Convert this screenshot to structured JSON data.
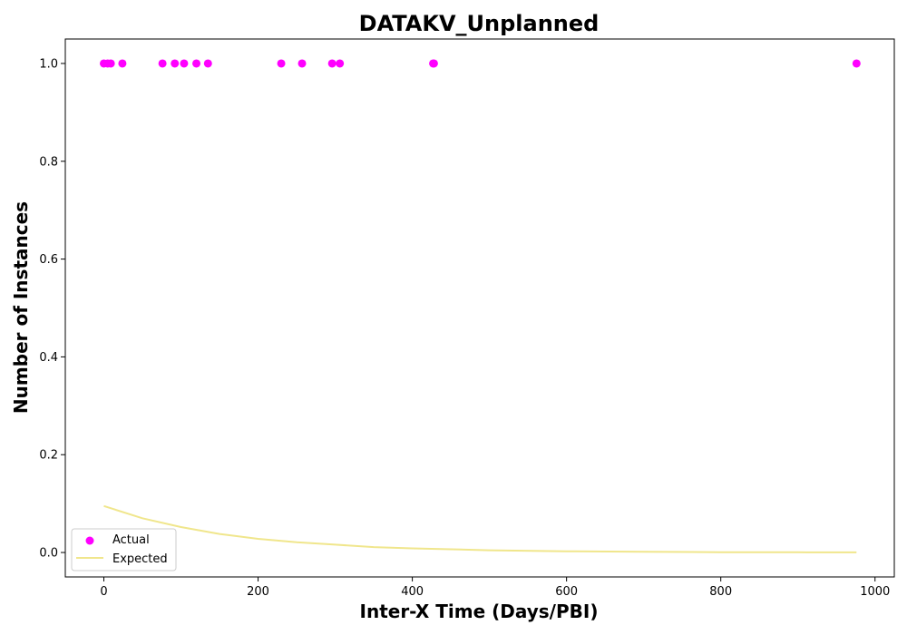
{
  "chart_data": {
    "type": "scatter",
    "title": "DATAKV_Unplanned",
    "xlabel": "Inter-X Time (Days/PBI)",
    "ylabel": "Number of Instances",
    "xlim": [
      -50,
      1025
    ],
    "ylim": [
      -0.05,
      1.05
    ],
    "xticks": [
      0,
      200,
      400,
      600,
      800,
      1000
    ],
    "xtick_labels": [
      "0",
      "200",
      "400",
      "600",
      "800",
      "1000"
    ],
    "yticks": [
      0.0,
      0.2,
      0.4,
      0.6,
      0.8,
      1.0
    ],
    "ytick_labels": [
      "0.0",
      "0.2",
      "0.4",
      "0.6",
      "0.8",
      "1.0"
    ],
    "grid": false,
    "legend_position": "lower-left",
    "series": [
      {
        "name": "Actual",
        "kind": "scatter",
        "color": "#ff00ff",
        "x": [
          0,
          5,
          9,
          24,
          76,
          92,
          104,
          120,
          135,
          230,
          257,
          296,
          306,
          427,
          428,
          976
        ],
        "y": [
          1,
          1,
          1,
          1,
          1,
          1,
          1,
          1,
          1,
          1,
          1,
          1,
          1,
          1,
          1,
          1
        ]
      },
      {
        "name": "Expected",
        "kind": "line",
        "color": "#f0e68c",
        "x": [
          0,
          50,
          100,
          150,
          200,
          250,
          300,
          350,
          400,
          450,
          500,
          600,
          700,
          800,
          900,
          976
        ],
        "y": [
          0.095,
          0.07,
          0.052,
          0.038,
          0.028,
          0.021,
          0.016,
          0.011,
          0.0085,
          0.0065,
          0.0045,
          0.0025,
          0.0013,
          0.0007,
          0.0004,
          0.0002
        ]
      }
    ]
  }
}
